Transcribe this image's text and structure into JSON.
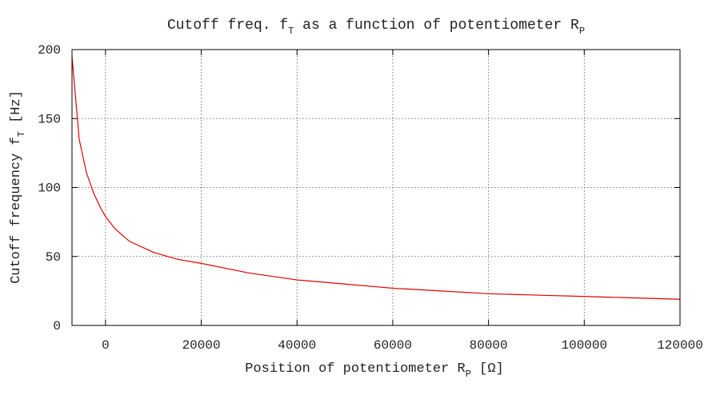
{
  "chart_data": {
    "type": "line",
    "title": {
      "main": "Cutoff freq. f",
      "sub": "T",
      "rest": " as a function of potentiometer R",
      "sub2": "P"
    },
    "xlabel": {
      "main": "Position of potentiometer R",
      "sub": "P",
      "rest": " [Ω]"
    },
    "ylabel": {
      "main": "Cutoff frequency f",
      "sub": "T",
      "rest": " [Hz]"
    },
    "xlim": [
      -7000,
      120000
    ],
    "ylim": [
      0,
      200
    ],
    "xticks": [
      0,
      20000,
      40000,
      60000,
      80000,
      100000,
      120000
    ],
    "yticks": [
      0,
      50,
      100,
      150,
      200
    ],
    "grid": true,
    "series": [
      {
        "color": "#e00000",
        "x": [
          -7000,
          -5500,
          -4000,
          -2500,
          -1000,
          0,
          2000,
          5000,
          10000,
          15000,
          20000,
          30000,
          40000,
          50000,
          60000,
          70000,
          80000,
          90000,
          100000,
          110000,
          120000
        ],
        "y": [
          195,
          135,
          111,
          96,
          85,
          79,
          70,
          61,
          53,
          48,
          45,
          38,
          33,
          30,
          27,
          25,
          23,
          22,
          21,
          20,
          19
        ]
      }
    ]
  }
}
